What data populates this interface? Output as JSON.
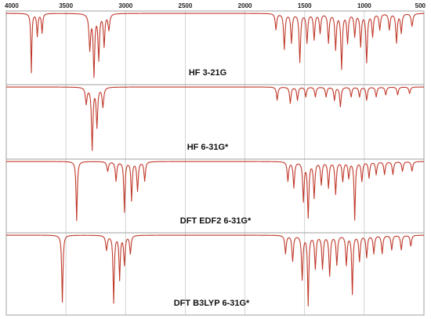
{
  "chart_data": {
    "type": "line",
    "x_axis": {
      "reversed": true,
      "xlim": [
        4000,
        500
      ],
      "ticks": [
        4000,
        3500,
        3000,
        2500,
        2000,
        1500,
        1000,
        500
      ],
      "tick_labels": [
        "4000",
        "3500",
        "3000",
        "2500",
        "2000",
        "1500",
        "1000",
        "500"
      ],
      "tick_position": "top"
    },
    "grid": true,
    "line_color": "#c0392b",
    "panels": [
      {
        "label": "HF 3-21G",
        "peaks": [
          {
            "x": 3790,
            "depth": 0.92,
            "width": 5
          },
          {
            "x": 3740,
            "depth": 0.35,
            "width": 6
          },
          {
            "x": 3700,
            "depth": 0.3,
            "width": 6
          },
          {
            "x": 3300,
            "depth": 0.55,
            "width": 8
          },
          {
            "x": 3265,
            "depth": 0.95,
            "width": 7
          },
          {
            "x": 3225,
            "depth": 0.7,
            "width": 7
          },
          {
            "x": 3180,
            "depth": 0.5,
            "width": 7
          },
          {
            "x": 3140,
            "depth": 0.25,
            "width": 8
          },
          {
            "x": 1740,
            "depth": 0.25,
            "width": 7
          },
          {
            "x": 1670,
            "depth": 0.55,
            "width": 7
          },
          {
            "x": 1610,
            "depth": 0.45,
            "width": 7
          },
          {
            "x": 1540,
            "depth": 0.75,
            "width": 7
          },
          {
            "x": 1480,
            "depth": 0.45,
            "width": 7
          },
          {
            "x": 1420,
            "depth": 0.4,
            "width": 7
          },
          {
            "x": 1370,
            "depth": 0.3,
            "width": 7
          },
          {
            "x": 1300,
            "depth": 0.45,
            "width": 7
          },
          {
            "x": 1240,
            "depth": 0.55,
            "width": 7
          },
          {
            "x": 1190,
            "depth": 0.85,
            "width": 7
          },
          {
            "x": 1140,
            "depth": 0.45,
            "width": 7
          },
          {
            "x": 1080,
            "depth": 0.35,
            "width": 7
          },
          {
            "x": 1030,
            "depth": 0.5,
            "width": 7
          },
          {
            "x": 980,
            "depth": 0.75,
            "width": 7
          },
          {
            "x": 930,
            "depth": 0.35,
            "width": 7
          },
          {
            "x": 870,
            "depth": 0.25,
            "width": 7
          },
          {
            "x": 790,
            "depth": 0.25,
            "width": 7
          },
          {
            "x": 730,
            "depth": 0.45,
            "width": 7
          },
          {
            "x": 690,
            "depth": 0.3,
            "width": 7
          },
          {
            "x": 600,
            "depth": 0.2,
            "width": 8
          }
        ]
      },
      {
        "label": "HF 6-31G*",
        "peaks": [
          {
            "x": 3330,
            "depth": 0.25,
            "width": 8
          },
          {
            "x": 3280,
            "depth": 0.95,
            "width": 7
          },
          {
            "x": 3240,
            "depth": 0.6,
            "width": 7
          },
          {
            "x": 3190,
            "depth": 0.3,
            "width": 8
          },
          {
            "x": 1730,
            "depth": 0.2,
            "width": 7
          },
          {
            "x": 1620,
            "depth": 0.25,
            "width": 7
          },
          {
            "x": 1560,
            "depth": 0.2,
            "width": 7
          },
          {
            "x": 1490,
            "depth": 0.15,
            "width": 7
          },
          {
            "x": 1410,
            "depth": 0.15,
            "width": 7
          },
          {
            "x": 1320,
            "depth": 0.15,
            "width": 7
          },
          {
            "x": 1250,
            "depth": 0.2,
            "width": 7
          },
          {
            "x": 1200,
            "depth": 0.3,
            "width": 7
          },
          {
            "x": 1110,
            "depth": 0.15,
            "width": 7
          },
          {
            "x": 1040,
            "depth": 0.15,
            "width": 7
          },
          {
            "x": 980,
            "depth": 0.2,
            "width": 7
          },
          {
            "x": 900,
            "depth": 0.15,
            "width": 7
          },
          {
            "x": 820,
            "depth": 0.12,
            "width": 7
          },
          {
            "x": 720,
            "depth": 0.12,
            "width": 7
          },
          {
            "x": 620,
            "depth": 0.1,
            "width": 7
          }
        ]
      },
      {
        "label": "DFT EDF2 6-31G*",
        "peaks": [
          {
            "x": 3410,
            "depth": 0.92,
            "width": 6
          },
          {
            "x": 3150,
            "depth": 0.15,
            "width": 8
          },
          {
            "x": 3080,
            "depth": 0.3,
            "width": 7
          },
          {
            "x": 3010,
            "depth": 0.78,
            "width": 6
          },
          {
            "x": 2950,
            "depth": 0.6,
            "width": 6
          },
          {
            "x": 2900,
            "depth": 0.45,
            "width": 7
          },
          {
            "x": 2840,
            "depth": 0.3,
            "width": 7
          },
          {
            "x": 1640,
            "depth": 0.3,
            "width": 7
          },
          {
            "x": 1590,
            "depth": 0.4,
            "width": 7
          },
          {
            "x": 1510,
            "depth": 0.6,
            "width": 7
          },
          {
            "x": 1470,
            "depth": 0.85,
            "width": 7
          },
          {
            "x": 1420,
            "depth": 0.55,
            "width": 7
          },
          {
            "x": 1360,
            "depth": 0.35,
            "width": 7
          },
          {
            "x": 1300,
            "depth": 0.4,
            "width": 7
          },
          {
            "x": 1240,
            "depth": 0.5,
            "width": 7
          },
          {
            "x": 1180,
            "depth": 0.3,
            "width": 7
          },
          {
            "x": 1130,
            "depth": 0.25,
            "width": 7
          },
          {
            "x": 1080,
            "depth": 0.9,
            "width": 6
          },
          {
            "x": 1020,
            "depth": 0.3,
            "width": 7
          },
          {
            "x": 960,
            "depth": 0.25,
            "width": 7
          },
          {
            "x": 900,
            "depth": 0.2,
            "width": 7
          },
          {
            "x": 830,
            "depth": 0.2,
            "width": 7
          },
          {
            "x": 760,
            "depth": 0.2,
            "width": 7
          },
          {
            "x": 680,
            "depth": 0.15,
            "width": 7
          },
          {
            "x": 600,
            "depth": 0.15,
            "width": 7
          }
        ]
      },
      {
        "label": "DFT B3LYP 6-31G*",
        "peaks": [
          {
            "x": 3530,
            "depth": 0.92,
            "width": 6
          },
          {
            "x": 3160,
            "depth": 0.2,
            "width": 8
          },
          {
            "x": 3100,
            "depth": 0.92,
            "width": 6
          },
          {
            "x": 3050,
            "depth": 0.6,
            "width": 6
          },
          {
            "x": 3010,
            "depth": 0.4,
            "width": 7
          },
          {
            "x": 2960,
            "depth": 0.25,
            "width": 7
          },
          {
            "x": 1660,
            "depth": 0.25,
            "width": 7
          },
          {
            "x": 1600,
            "depth": 0.35,
            "width": 7
          },
          {
            "x": 1520,
            "depth": 0.6,
            "width": 7
          },
          {
            "x": 1470,
            "depth": 0.95,
            "width": 6
          },
          {
            "x": 1410,
            "depth": 0.45,
            "width": 7
          },
          {
            "x": 1350,
            "depth": 0.45,
            "width": 7
          },
          {
            "x": 1290,
            "depth": 0.55,
            "width": 7
          },
          {
            "x": 1230,
            "depth": 0.4,
            "width": 7
          },
          {
            "x": 1150,
            "depth": 0.4,
            "width": 7
          },
          {
            "x": 1100,
            "depth": 0.8,
            "width": 6
          },
          {
            "x": 1040,
            "depth": 0.35,
            "width": 7
          },
          {
            "x": 980,
            "depth": 0.3,
            "width": 7
          },
          {
            "x": 920,
            "depth": 0.25,
            "width": 7
          },
          {
            "x": 850,
            "depth": 0.25,
            "width": 7
          },
          {
            "x": 770,
            "depth": 0.2,
            "width": 7
          },
          {
            "x": 690,
            "depth": 0.2,
            "width": 7
          },
          {
            "x": 610,
            "depth": 0.15,
            "width": 7
          }
        ]
      }
    ]
  }
}
